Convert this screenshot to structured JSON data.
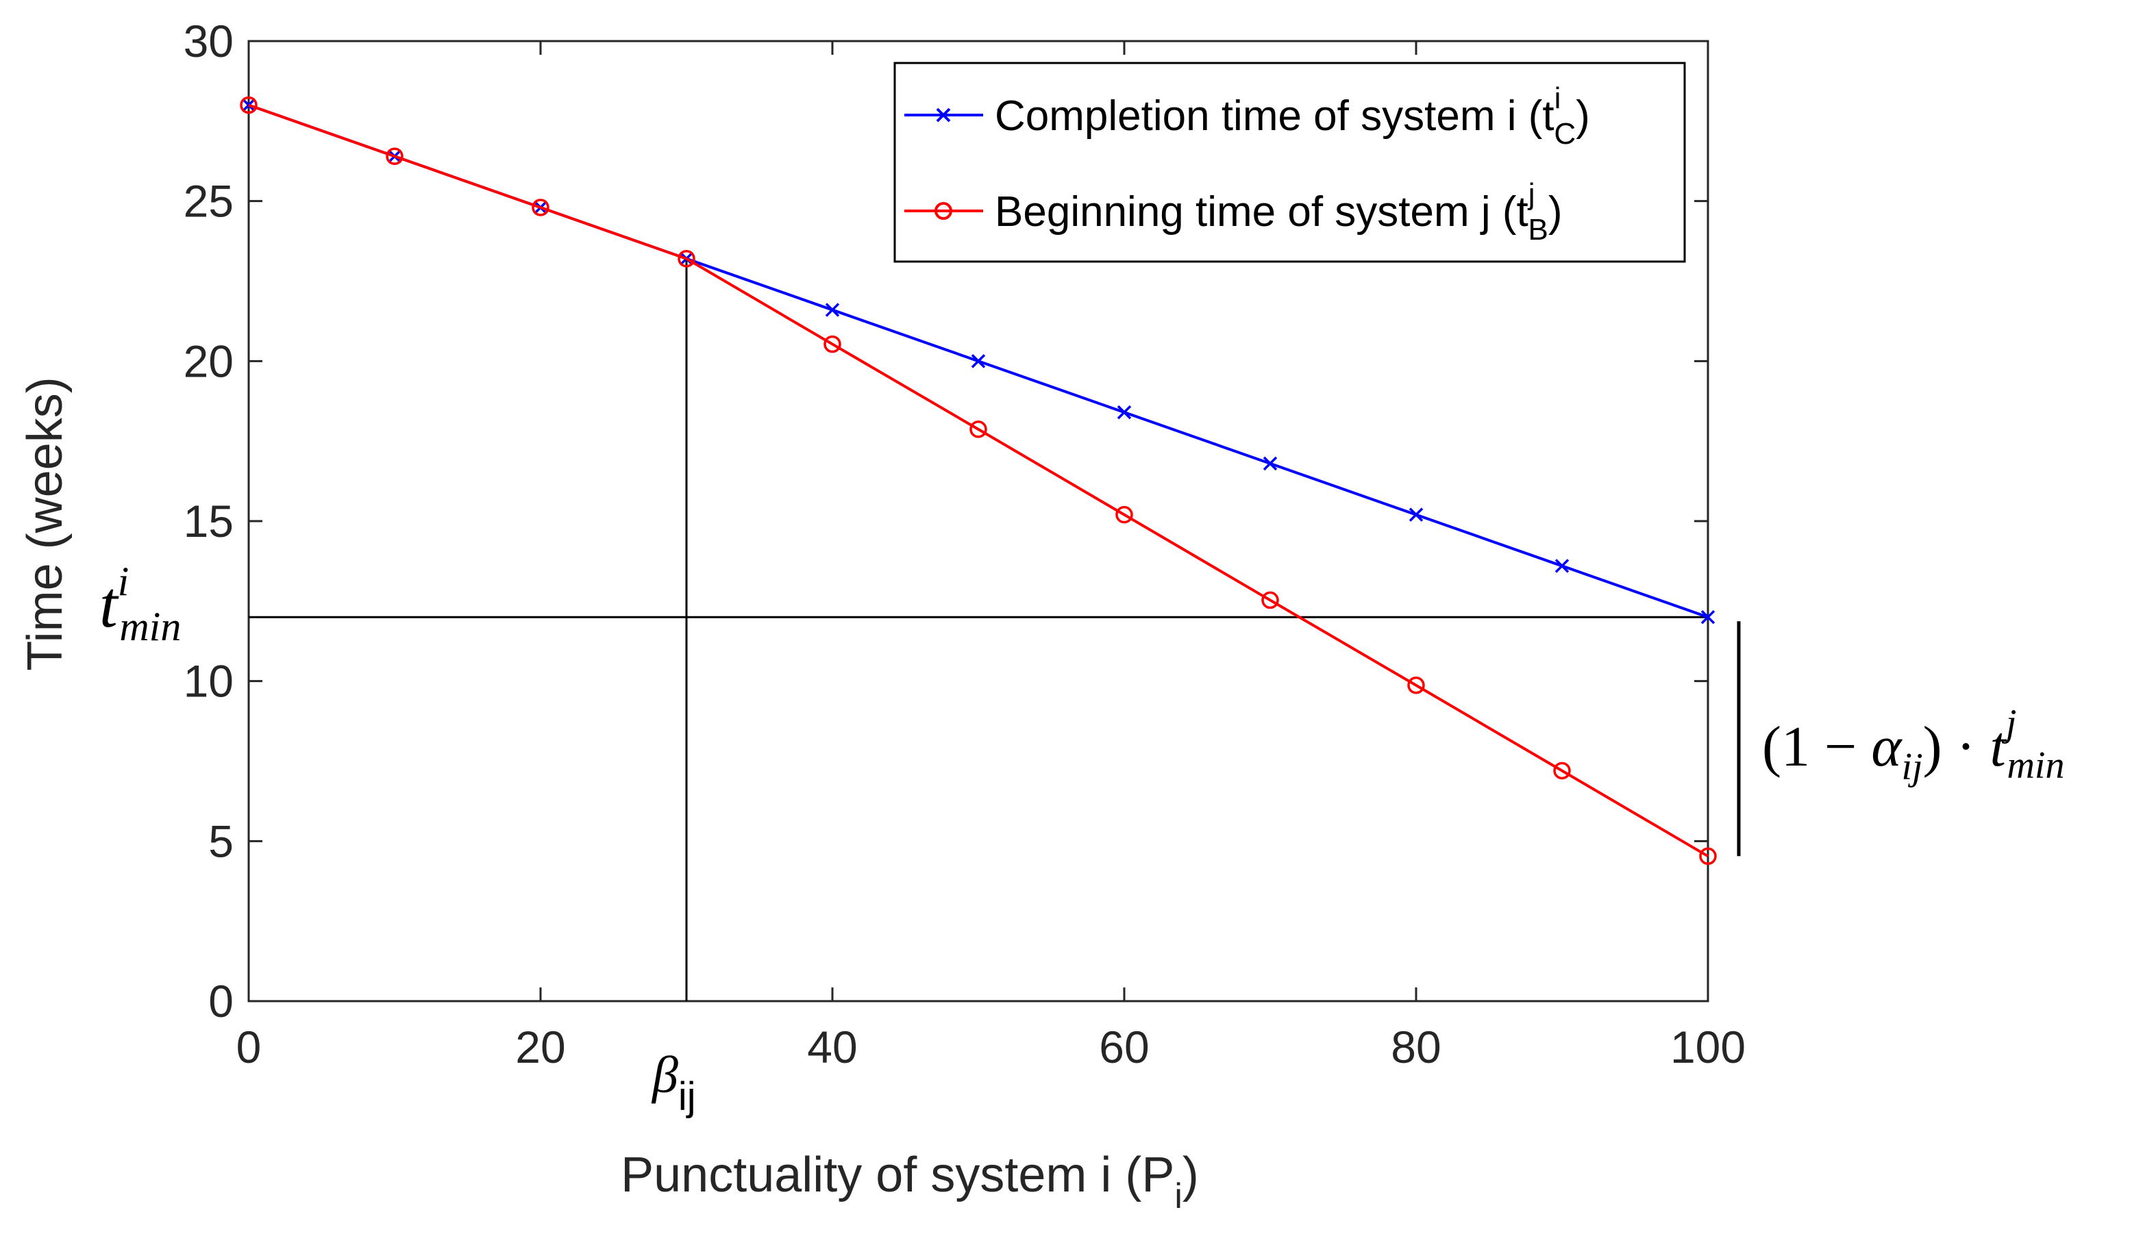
{
  "chart_data": {
    "type": "line",
    "xlabel": {
      "main": "Punctuality of system i (P",
      "sub": "i",
      "close": ")"
    },
    "ylabel": "Time (weeks)",
    "xlim": [
      0,
      100
    ],
    "ylim": [
      0,
      30
    ],
    "xticks": [
      0,
      20,
      40,
      60,
      80,
      100
    ],
    "yticks": [
      0,
      5,
      10,
      15,
      20,
      25,
      30
    ],
    "x": [
      0,
      10,
      20,
      30,
      40,
      50,
      60,
      70,
      80,
      90,
      100
    ],
    "grid": false,
    "legend_position": "top-right",
    "series": [
      {
        "name": "Completion time of system i (t",
        "name_sup": "i",
        "name_sub": "C",
        "name_close": ")",
        "color": "#0000ff",
        "marker": "x",
        "values": [
          28,
          26.4,
          24.8,
          23.2,
          21.6,
          20,
          18.4,
          16.8,
          15.2,
          13.6,
          12
        ]
      },
      {
        "name": "Beginning time of system j (t",
        "name_sup": "j",
        "name_sub": "B",
        "name_close": ")",
        "color": "#ff0000",
        "marker": "o",
        "values": [
          28,
          26.4,
          24.8,
          23.2,
          20.53,
          17.87,
          15.2,
          12.53,
          9.87,
          7.2,
          4.53
        ]
      }
    ],
    "annotations": {
      "beta": {
        "symbol": "β",
        "sub": "ij",
        "x": 30
      },
      "tmin": {
        "base": "t",
        "sup": "i",
        "sub": "min",
        "y": 12
      },
      "alpha_bracket": {
        "y_from": 4.53,
        "y_to": 12,
        "open": "(1 − ",
        "alpha": "α",
        "alpha_sub": "ij",
        "close": ") · ",
        "t": "t",
        "t_sup": "j",
        "t_sub": "min"
      }
    }
  }
}
